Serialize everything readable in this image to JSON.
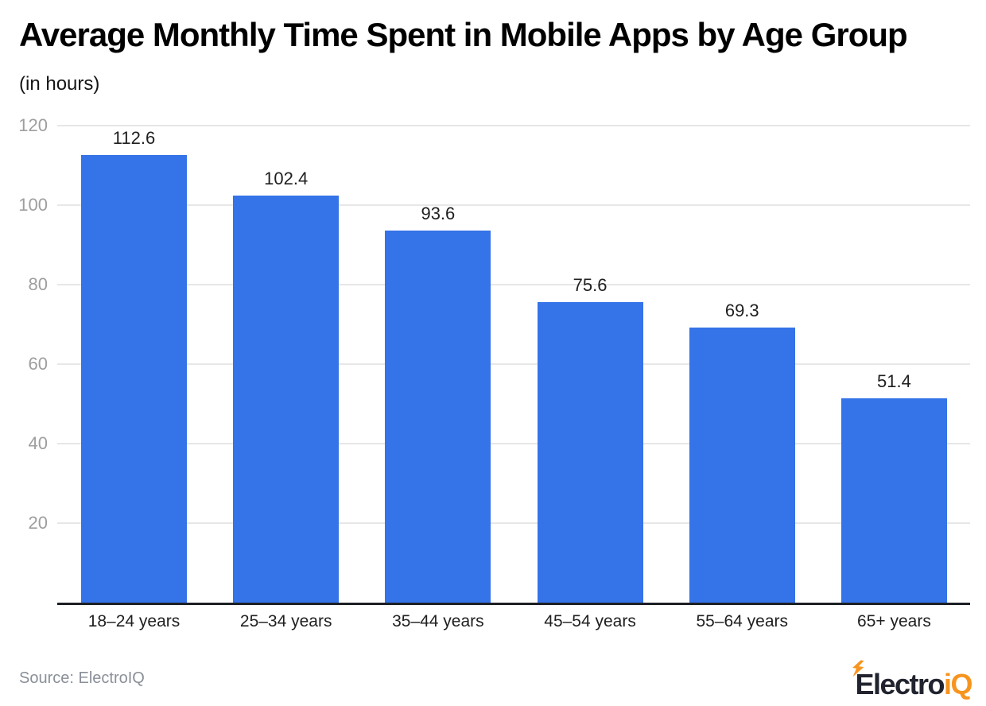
{
  "header": {
    "title": "Average Monthly Time Spent in Mobile Apps by Age Group",
    "subtitle": "(in hours)"
  },
  "chart_data": {
    "type": "bar",
    "title": "Average Monthly Time Spent in Mobile Apps by Age Group",
    "ylabel": "(in hours)",
    "categories": [
      "18–24 years",
      "25–34 years",
      "35–44 years",
      "45–54 years",
      "55–64 years",
      "65+ years"
    ],
    "values": [
      112.6,
      102.4,
      93.6,
      75.6,
      69.3,
      51.4
    ],
    "value_labels": [
      "112.6",
      "102.4",
      "93.6",
      "75.6",
      "69.3",
      "51.4"
    ],
    "ylim": [
      0,
      120
    ],
    "yticks": [
      20,
      40,
      60,
      80,
      100,
      120
    ],
    "grid": true,
    "legend": "none",
    "bar_color": "#3473e8",
    "gridline_color": "#e7e7e7",
    "axis_line_color": "#1c2025",
    "tick_label_color": "#9e9e9e",
    "category_label_color": "#1f1f1f"
  },
  "footer": {
    "source": "Source: ElectroIQ",
    "logo": {
      "part1": "Electro",
      "part2": "iQ",
      "dark_color": "#21242f",
      "orange_color": "#f7941e",
      "bolt_icon": "lightning-bolt"
    }
  }
}
